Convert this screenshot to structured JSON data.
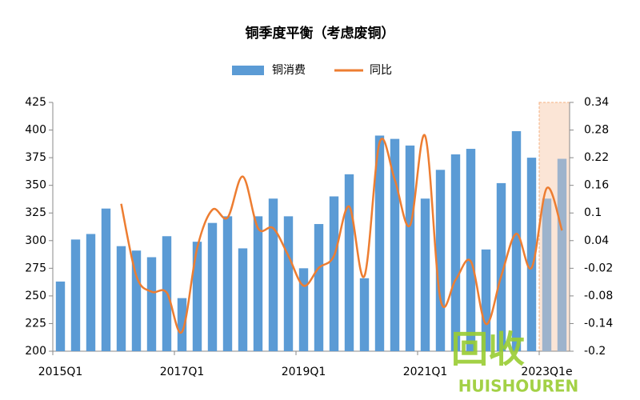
{
  "chart_data": {
    "type": "bar_line",
    "title": "铜季度平衡（考虑废铜）",
    "categories": [
      "2015Q1",
      null,
      null,
      null,
      null,
      null,
      null,
      null,
      "2017Q1",
      null,
      null,
      null,
      null,
      null,
      null,
      null,
      "2019Q1",
      null,
      null,
      null,
      null,
      null,
      null,
      null,
      "2021Q1",
      null,
      null,
      null,
      null,
      null,
      null,
      null,
      "2023Q1e",
      null
    ],
    "series": [
      {
        "name": "铜消费",
        "type": "bar",
        "color": "#5b9bd5",
        "forecast_color": "#9db3cc",
        "values": [
          263,
          301,
          306,
          329,
          295,
          291,
          285,
          304,
          248,
          299,
          316,
          322,
          293,
          322,
          338,
          322,
          275,
          315,
          340,
          360,
          266,
          395,
          392,
          386,
          338,
          364,
          378,
          383,
          292,
          352,
          399,
          375,
          338,
          374
        ]
      },
      {
        "name": "同比",
        "type": "line",
        "axis": "y2",
        "color": "#ed7d31",
        "values": [
          null,
          null,
          null,
          null,
          0.12,
          -0.037,
          -0.071,
          -0.073,
          -0.158,
          0.024,
          0.107,
          0.09,
          0.179,
          0.067,
          0.067,
          0.007,
          -0.058,
          -0.019,
          0.007,
          0.114,
          -0.037,
          0.253,
          0.172,
          0.073,
          0.267,
          -0.087,
          -0.045,
          -0.005,
          -0.141,
          -0.037,
          0.055,
          -0.019,
          0.154,
          0.062
        ]
      }
    ],
    "forecast_from": 32,
    "forecast_shade": "#fbe5d6",
    "ylim": [
      200,
      425
    ],
    "yticks": [
      200,
      225,
      250,
      275,
      300,
      325,
      350,
      375,
      400,
      425
    ],
    "y2lim": [
      -0.2,
      0.34
    ],
    "y2ticks": [
      -0.2,
      -0.14,
      -0.08,
      -0.02,
      0.04,
      0.1,
      0.16,
      0.22,
      0.28,
      0.34
    ],
    "legend": "top",
    "watermark": {
      "text": "回收",
      "subtext": "HUISHOUREN",
      "color": "#9acd32"
    }
  }
}
